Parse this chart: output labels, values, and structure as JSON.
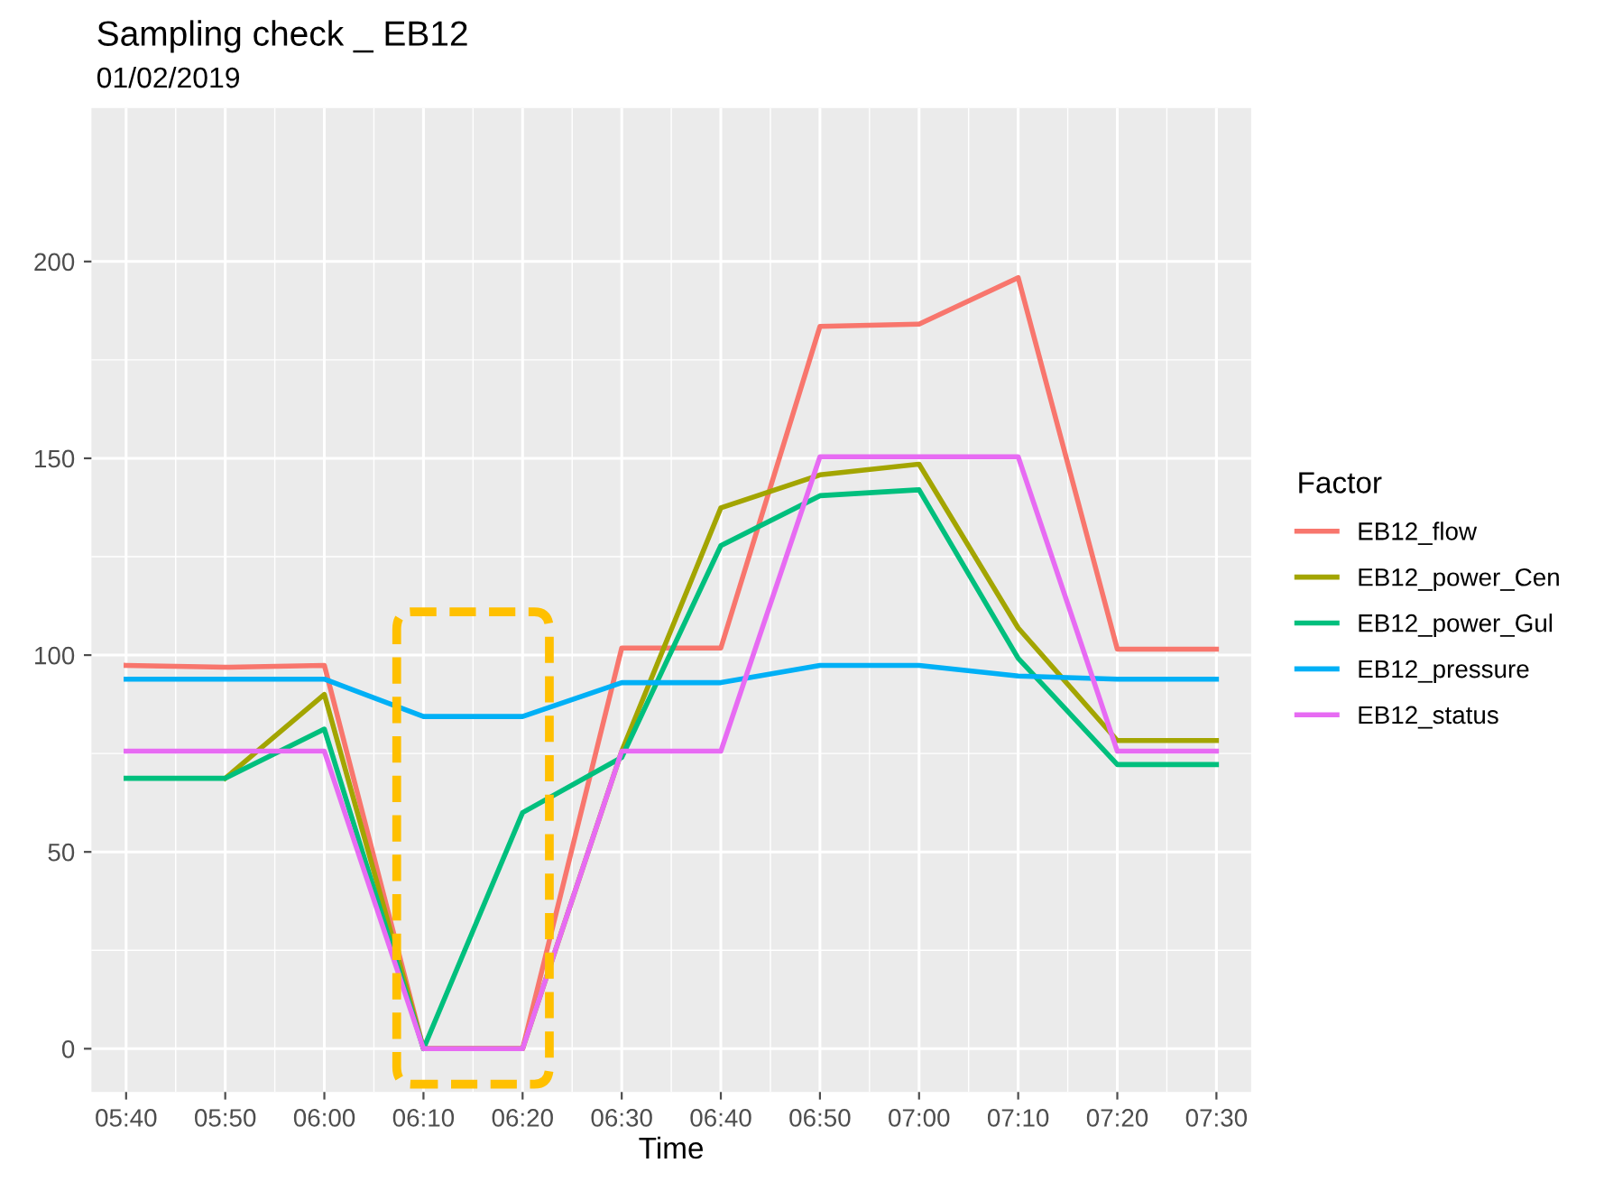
{
  "chart_data": {
    "type": "line",
    "title": "Sampling check _ EB12",
    "subtitle": "01/02/2019",
    "xlabel": "Time",
    "legend_title": "Factor",
    "categories": [
      "05:40",
      "05:50",
      "06:00",
      "06:10",
      "06:20",
      "06:30",
      "06:40",
      "06:50",
      "07:00",
      "07:10",
      "07:20",
      "07:30"
    ],
    "series": [
      {
        "name": "EB12_flow",
        "color": "#f8766d",
        "values": [
          97.4,
          96.9,
          97.4,
          0,
          0,
          101.8,
          101.8,
          183.5,
          184.1,
          195.9,
          101.5,
          101.5
        ]
      },
      {
        "name": "EB12_power_Cen",
        "color": "#a3a500",
        "values": [
          null,
          68.7,
          90,
          0,
          0,
          75.6,
          137.4,
          145.8,
          148.5,
          106.9,
          78.3,
          78.3
        ]
      },
      {
        "name": "EB12_power_Gul",
        "color": "#00bf7d",
        "values": [
          68.7,
          68.7,
          81.2,
          0,
          60,
          74,
          127.8,
          140.5,
          142,
          99.2,
          72.2,
          72.2
        ]
      },
      {
        "name": "EB12_pressure",
        "color": "#00b0f6",
        "values": [
          93.9,
          93.9,
          93.9,
          84.4,
          84.4,
          93,
          93,
          97.4,
          97.4,
          94.7,
          93.9,
          93.9
        ]
      },
      {
        "name": "EB12_status",
        "color": "#e76bf3",
        "values": [
          75.6,
          75.6,
          75.6,
          0,
          0,
          75.6,
          75.6,
          150.4,
          150.4,
          150.4,
          75.6,
          75.6
        ]
      }
    ],
    "ylim": [
      -11,
      239
    ],
    "yticks": [
      0,
      50,
      100,
      150,
      200
    ],
    "grid": true,
    "legend": "right",
    "marker": "none",
    "line_style": "solid"
  }
}
